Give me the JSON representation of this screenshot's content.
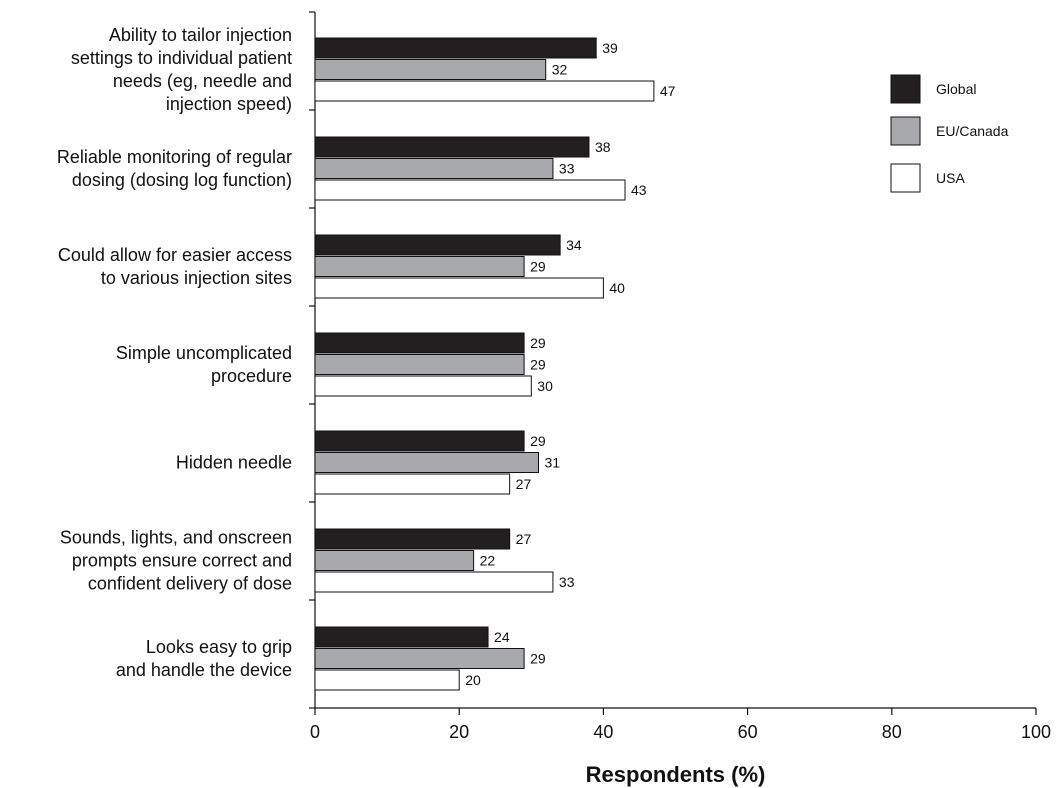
{
  "chart_data": {
    "type": "bar",
    "orientation": "horizontal",
    "categories": [
      [
        "Ability to tailor injection",
        "settings to individual patient",
        "needs (eg, needle and",
        "injection speed)"
      ],
      [
        "Reliable monitoring of regular",
        "dosing (dosing log function)"
      ],
      [
        "Could allow for easier access",
        "to various injection sites"
      ],
      [
        "Simple uncomplicated",
        "procedure"
      ],
      [
        "Hidden needle"
      ],
      [
        "Sounds, lights, and onscreen",
        "prompts ensure correct and",
        "confident delivery of dose"
      ],
      [
        "Looks easy to grip",
        "and handle the device"
      ]
    ],
    "series": [
      {
        "name": "Global",
        "color": "#231f20",
        "values": [
          39,
          38,
          34,
          29,
          29,
          27,
          24
        ]
      },
      {
        "name": "EU/Canada",
        "color": "#a7a9ac",
        "values": [
          32,
          33,
          29,
          29,
          31,
          22,
          29
        ]
      },
      {
        "name": "USA",
        "color": "#ffffff",
        "values": [
          47,
          43,
          40,
          30,
          27,
          33,
          20
        ]
      }
    ],
    "xlabel": "Respondents (%)",
    "ylabel": "",
    "xlim": [
      0,
      100
    ],
    "xticks": [
      0,
      20,
      40,
      60,
      80,
      100
    ],
    "grid": false,
    "legend_position": "top-right"
  }
}
